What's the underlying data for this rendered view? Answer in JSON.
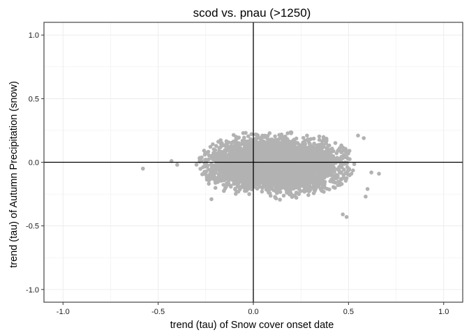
{
  "chart_data": {
    "type": "scatter",
    "title": "scod vs. pnau (>1250)",
    "xlabel": "trend (tau) of Snow cover onset date",
    "ylabel": "trend (tau) of Autumn Precipitation (snow)",
    "xlim": [
      -1.1,
      1.1
    ],
    "ylim": [
      -1.1,
      1.1
    ],
    "xticks": [
      "-1.0",
      "-0.5",
      "0.0",
      "0.5",
      "1.0"
    ],
    "yticks": [
      "-1.0",
      "-0.5",
      "0.0",
      "0.5",
      "1.0"
    ],
    "grid": true,
    "reference_lines": {
      "x": 0,
      "y": 0
    },
    "point_color": "#b2b2b2",
    "point_cloud": {
      "n_points_approx": 5000,
      "x_center": 0.12,
      "x_half_width": 0.42,
      "x_spread_sd": 0.16,
      "y_center": -0.02,
      "y_half_width": 0.28,
      "y_spread_sd": 0.09
    },
    "outliers": [
      {
        "x": -0.58,
        "y": -0.05
      },
      {
        "x": 0.62,
        "y": -0.08
      },
      {
        "x": 0.66,
        "y": -0.09
      },
      {
        "x": 0.58,
        "y": 0.19
      },
      {
        "x": 0.55,
        "y": 0.21
      },
      {
        "x": -0.43,
        "y": 0.01
      },
      {
        "x": -0.4,
        "y": -0.02
      },
      {
        "x": 0.49,
        "y": -0.43
      },
      {
        "x": 0.47,
        "y": -0.41
      },
      {
        "x": -0.22,
        "y": -0.29
      },
      {
        "x": 0.6,
        "y": -0.21
      },
      {
        "x": 0.59,
        "y": -0.27
      }
    ]
  }
}
